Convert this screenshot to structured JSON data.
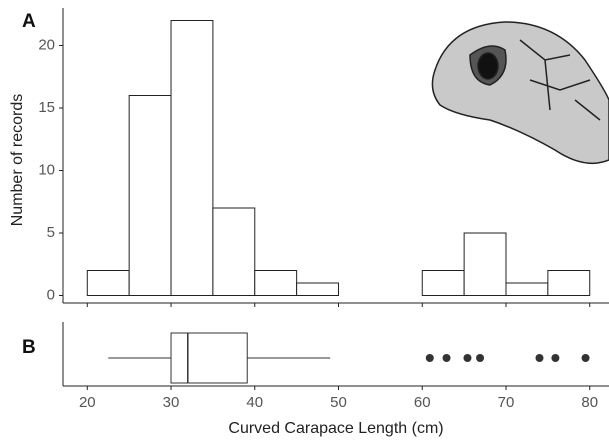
{
  "chart_data": [
    {
      "type": "histogram",
      "panel": "A",
      "ylabel": "Number of records",
      "bins": [
        20,
        25,
        30,
        35,
        40,
        45,
        50,
        55,
        60,
        65,
        70,
        75,
        80
      ],
      "values": [
        2,
        16,
        22,
        7,
        2,
        1,
        0,
        0,
        2,
        5,
        1,
        2
      ],
      "color": "#ffffff",
      "edgecolor": "#222222",
      "xlim": [
        17.1,
        82.3
      ],
      "ylim": [
        -0.6,
        23
      ],
      "yticks": [
        0,
        5,
        10,
        15,
        20
      ]
    },
    {
      "type": "boxplot",
      "panel": "B",
      "xlabel": "Curved Carapace Length (cm)",
      "whislo": 22.5,
      "q1": 30.0,
      "median": 32.0,
      "q3": 39.1,
      "whishi": 49.0,
      "fliers": [
        60.9,
        62.9,
        65.4,
        66.9,
        74.0,
        75.9,
        79.5
      ],
      "color": "#ffffff",
      "flier_color": "#333333",
      "xlim": [
        17.1,
        82.3
      ],
      "xticks": [
        20,
        30,
        40,
        50,
        60,
        70,
        80
      ]
    }
  ]
}
